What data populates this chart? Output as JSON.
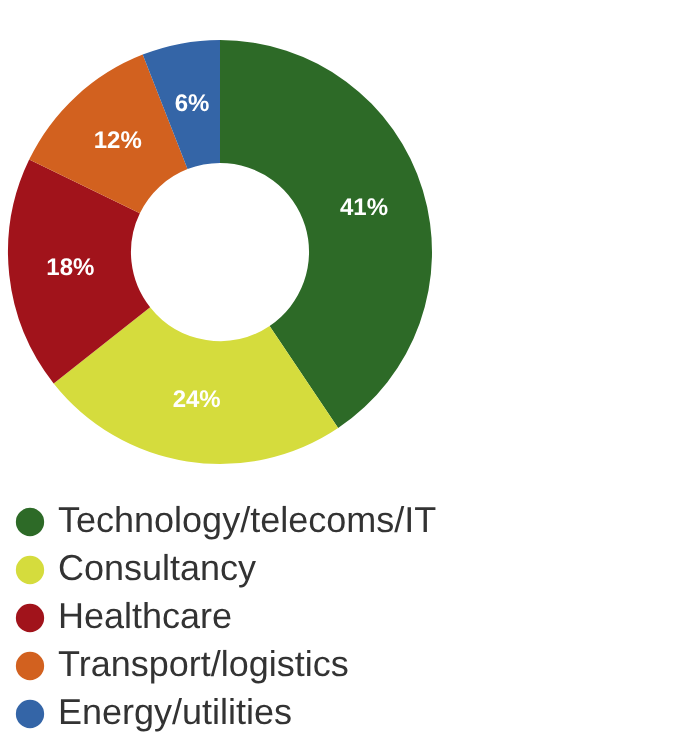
{
  "chart_data": {
    "type": "donut",
    "categories": [
      "Technology/telecoms/IT",
      "Consultancy",
      "Healthcare",
      "Transport/logistics",
      "Energy/utilities"
    ],
    "values": [
      41,
      24,
      18,
      12,
      6
    ],
    "colors": [
      "#2d6a27",
      "#d5dc3d",
      "#a1131b",
      "#d2611f",
      "#3465a7"
    ],
    "value_labels": [
      "41%",
      "24%",
      "18%",
      "12%",
      "6%"
    ],
    "legend": "bottom left"
  }
}
